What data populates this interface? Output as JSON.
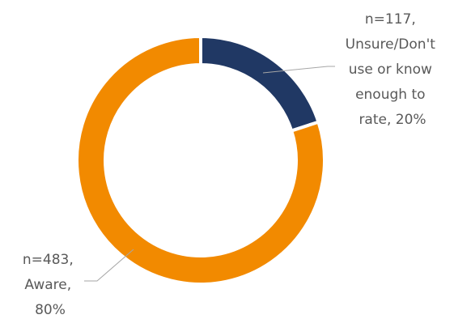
{
  "chart_data": {
    "type": "pie",
    "donut": true,
    "title": "",
    "slices": [
      {
        "n": "n=117,",
        "category": "Unsure/Don't use or know enough to rate",
        "percent": 20,
        "label_lines": [
          "n=117,",
          "Unsure/Don't",
          "use or know",
          "enough to",
          "rate, 20%"
        ],
        "color": "#203864"
      },
      {
        "n": "n=483,",
        "category": "Aware",
        "percent": 80,
        "label_lines": [
          "n=483,",
          "Aware,",
          "80%"
        ],
        "color": "#f28a00"
      }
    ],
    "legend": "none"
  }
}
